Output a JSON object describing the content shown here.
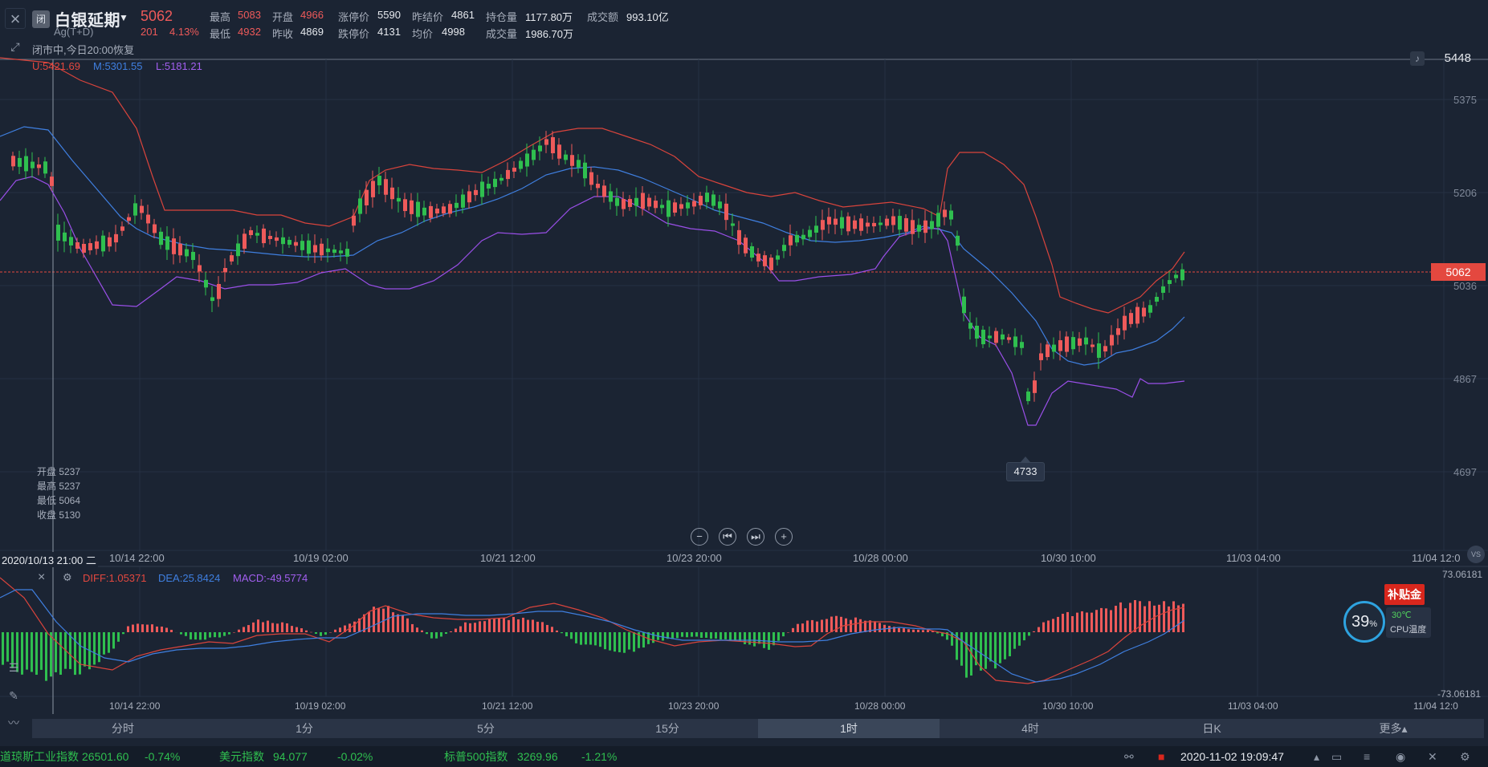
{
  "header": {
    "close_icon": "x-icon",
    "badge": "闭",
    "name": "白银延期",
    "code": "Ag(T+D)",
    "price": "5062",
    "change": "201",
    "change_pct": "4.13%",
    "quotes": [
      {
        "label": "最高",
        "value": "5083",
        "color": "red"
      },
      {
        "label": "开盘",
        "value": "4966",
        "color": "red"
      },
      {
        "label": "涨停价",
        "value": "5590",
        "color": "white"
      },
      {
        "label": "昨结价",
        "value": "4861",
        "color": "white"
      },
      {
        "label": "持仓量",
        "value": "1177.80万",
        "color": "white"
      },
      {
        "label": "成交额",
        "value": "993.10亿",
        "color": "white"
      },
      {
        "label": "最低",
        "value": "4932",
        "color": "red"
      },
      {
        "label": "昨收",
        "value": "4869",
        "color": "white"
      },
      {
        "label": "跌停价",
        "value": "4131",
        "color": "white"
      },
      {
        "label": "均价",
        "value": "4998",
        "color": "white"
      },
      {
        "label": "成交量",
        "value": "1986.70万",
        "color": "white"
      }
    ],
    "status": "闭市中,今日20:00恢复"
  },
  "boll": {
    "u": "U:5421.69",
    "m": "M:5301.55",
    "l": "L:5181.21"
  },
  "price_axis": [
    "5375",
    "5206",
    "5036",
    "4867",
    "4697"
  ],
  "alert_price": "5448",
  "current_price_tag": "5062",
  "low_marker": "4733",
  "ohlc_panel": [
    "开盘 5237",
    "最高 5237",
    "最低 5064",
    "收盘 5130"
  ],
  "crosshair_time": "2020/10/13 21:00 二",
  "time_axis": [
    "10/14 22:00",
    "10/19 02:00",
    "10/21 12:00",
    "10/23 20:00",
    "10/28 00:00",
    "10/30 10:00",
    "11/03 04:00",
    "11/04 12:0"
  ],
  "nav_buttons": [
    "⊖",
    "⏮",
    "⏭",
    "⊕"
  ],
  "macd": {
    "diff": "DIFF:1.05371",
    "dea": "DEA:25.8424",
    "macd": "MACD:-49.5774",
    "axis_top": "73.06181",
    "axis_bottom": "-73.06181"
  },
  "tabs": [
    "分时",
    "1分",
    "5分",
    "15分",
    "1时",
    "4时",
    "日K",
    "更多▴"
  ],
  "active_tab": "1时",
  "tickers": [
    {
      "name": "道琼斯工业指数",
      "value": "26501.60",
      "change": "-0.74%"
    },
    {
      "name": "美元指数",
      "value": "94.077",
      "change": "-0.02%"
    },
    {
      "name": "标普500指数",
      "value": "3269.96",
      "change": "-1.21%"
    }
  ],
  "system_time": "2020-11-02 19:09:47",
  "cpu": {
    "percent": "39",
    "unit": "%",
    "temp": "30℃",
    "label": "CPU温度"
  },
  "subsidy": "补贴金",
  "vs_label": "VS",
  "colors": {
    "bg": "#1b2433",
    "up": "#ee5a5a",
    "down": "#2fbf4f",
    "upper_band": "#d9443c",
    "mid_band": "#3f7fe0",
    "lower_band": "#9a4fe8"
  }
}
